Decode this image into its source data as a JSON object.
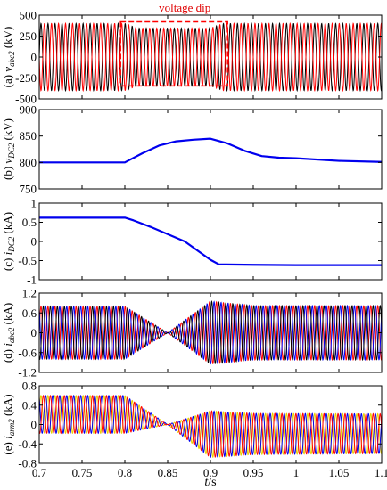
{
  "chart_data": [
    {
      "id": "a",
      "type": "line",
      "ylabel": "(a) v_abc2 (kV)",
      "ylabel_parts": {
        "prefix": "(a) ",
        "sym": "v",
        "sub": "abc2",
        "unit": " (kV)"
      },
      "ylim": [
        -500,
        500
      ],
      "yticks": [
        "500",
        "250",
        "0",
        "-250",
        "-500"
      ],
      "ytick_values": [
        500,
        250,
        0,
        -250,
        -500
      ],
      "envelope": {
        "t": [
          0.7,
          0.8,
          0.815,
          0.9,
          0.915,
          1.1
        ],
        "upper": [
          400,
          400,
          345,
          345,
          400,
          400
        ],
        "lower": [
          -400,
          -400,
          -345,
          -345,
          -400,
          -400
        ]
      },
      "series_colors": [
        "#000000",
        "#ff0000"
      ],
      "annotation": {
        "text": "voltage dip",
        "t_range": [
          0.795,
          0.92
        ],
        "y_range": [
          -345,
          420
        ]
      }
    },
    {
      "id": "b",
      "type": "line",
      "ylabel": "(b) v_DC2 (kV)",
      "ylabel_parts": {
        "prefix": "(b) ",
        "sym": "v",
        "sub": "DC2",
        "unit": " (kV)"
      },
      "ylim": [
        750,
        900
      ],
      "yticks": [
        "900",
        "850",
        "800",
        "750"
      ],
      "ytick_values": [
        900,
        850,
        800,
        750
      ],
      "series": [
        {
          "t": [
            0.7,
            0.8,
            0.82,
            0.84,
            0.86,
            0.88,
            0.9,
            0.92,
            0.94,
            0.96,
            0.98,
            1.0,
            1.05,
            1.1
          ],
          "values": [
            800,
            800,
            817,
            832,
            840,
            843,
            845,
            836,
            822,
            812,
            809,
            808,
            803,
            801
          ],
          "color": "#0000ee"
        }
      ]
    },
    {
      "id": "c",
      "type": "line",
      "ylabel": "(c) i_DC2 (kA)",
      "ylabel_parts": {
        "prefix": "(c) ",
        "sym": "i",
        "sub": "DC2",
        "unit": " (kA)"
      },
      "ylim": [
        -1,
        1
      ],
      "yticks": [
        "1",
        "0.5",
        "0",
        "-0.5",
        "-1"
      ],
      "ytick_values": [
        1,
        0.5,
        0,
        -0.5,
        -1
      ],
      "series": [
        {
          "t": [
            0.7,
            0.8,
            0.81,
            0.83,
            0.87,
            0.9,
            0.91,
            0.95,
            1.0,
            1.1
          ],
          "values": [
            0.62,
            0.62,
            0.55,
            0.38,
            0.0,
            -0.48,
            -0.6,
            -0.61,
            -0.62,
            -0.62
          ],
          "color": "#0000ee"
        }
      ]
    },
    {
      "id": "d",
      "type": "line",
      "ylabel": "(d) i_abc2 (kA)",
      "ylabel_parts": {
        "prefix": "(d) ",
        "sym": "i",
        "sub": "abc2",
        "unit": " (kA)"
      },
      "ylim": [
        -1.2,
        1.2
      ],
      "yticks": [
        "1.2",
        "0.6",
        "0",
        "-0.6",
        "-1.2"
      ],
      "ytick_values": [
        1.2,
        0.6,
        0,
        -0.6,
        -1.2
      ],
      "envelope": {
        "t": [
          0.7,
          0.8,
          0.85,
          0.9,
          0.95,
          1.1
        ],
        "upper": [
          0.8,
          0.8,
          0.0,
          0.95,
          0.82,
          0.82
        ],
        "lower": [
          -0.8,
          -0.8,
          0.0,
          -0.95,
          -0.82,
          -0.82
        ]
      },
      "series_colors": [
        "#ff0000",
        "#0000ee",
        "#000000"
      ]
    },
    {
      "id": "e",
      "type": "line",
      "ylabel": "(e) i_arm2 (kA)",
      "ylabel_parts": {
        "prefix": "(e) ",
        "sym": "i",
        "sub": "arm2",
        "unit": " (kA)"
      },
      "ylim": [
        -0.8,
        0.8
      ],
      "yticks": [
        "0.8",
        "0.4",
        "0",
        "-0.4",
        "-0.8"
      ],
      "ytick_values": [
        0.8,
        0.4,
        0,
        -0.4,
        -0.8
      ],
      "envelope": {
        "t": [
          0.7,
          0.8,
          0.85,
          0.9,
          0.95,
          1.1
        ],
        "upper": [
          0.6,
          0.6,
          0.0,
          0.28,
          0.23,
          0.22
        ],
        "lower": [
          -0.18,
          -0.18,
          0.0,
          -0.68,
          -0.62,
          -0.6
        ]
      },
      "series_colors": [
        "#e8d000",
        "#0000ee",
        "#ff0000"
      ]
    }
  ],
  "x_axis": {
    "label": "t/s",
    "label_parts": {
      "sym": "t",
      "unit": "/s"
    },
    "xlim": [
      0.7,
      1.1
    ],
    "ticks": [
      "0.7",
      "0.75",
      "0.8",
      "0.85",
      "0.9",
      "0.95",
      "1",
      "1.05",
      "1.1"
    ],
    "tick_values": [
      0.7,
      0.75,
      0.8,
      0.85,
      0.9,
      0.95,
      1.0,
      1.05,
      1.1
    ]
  }
}
